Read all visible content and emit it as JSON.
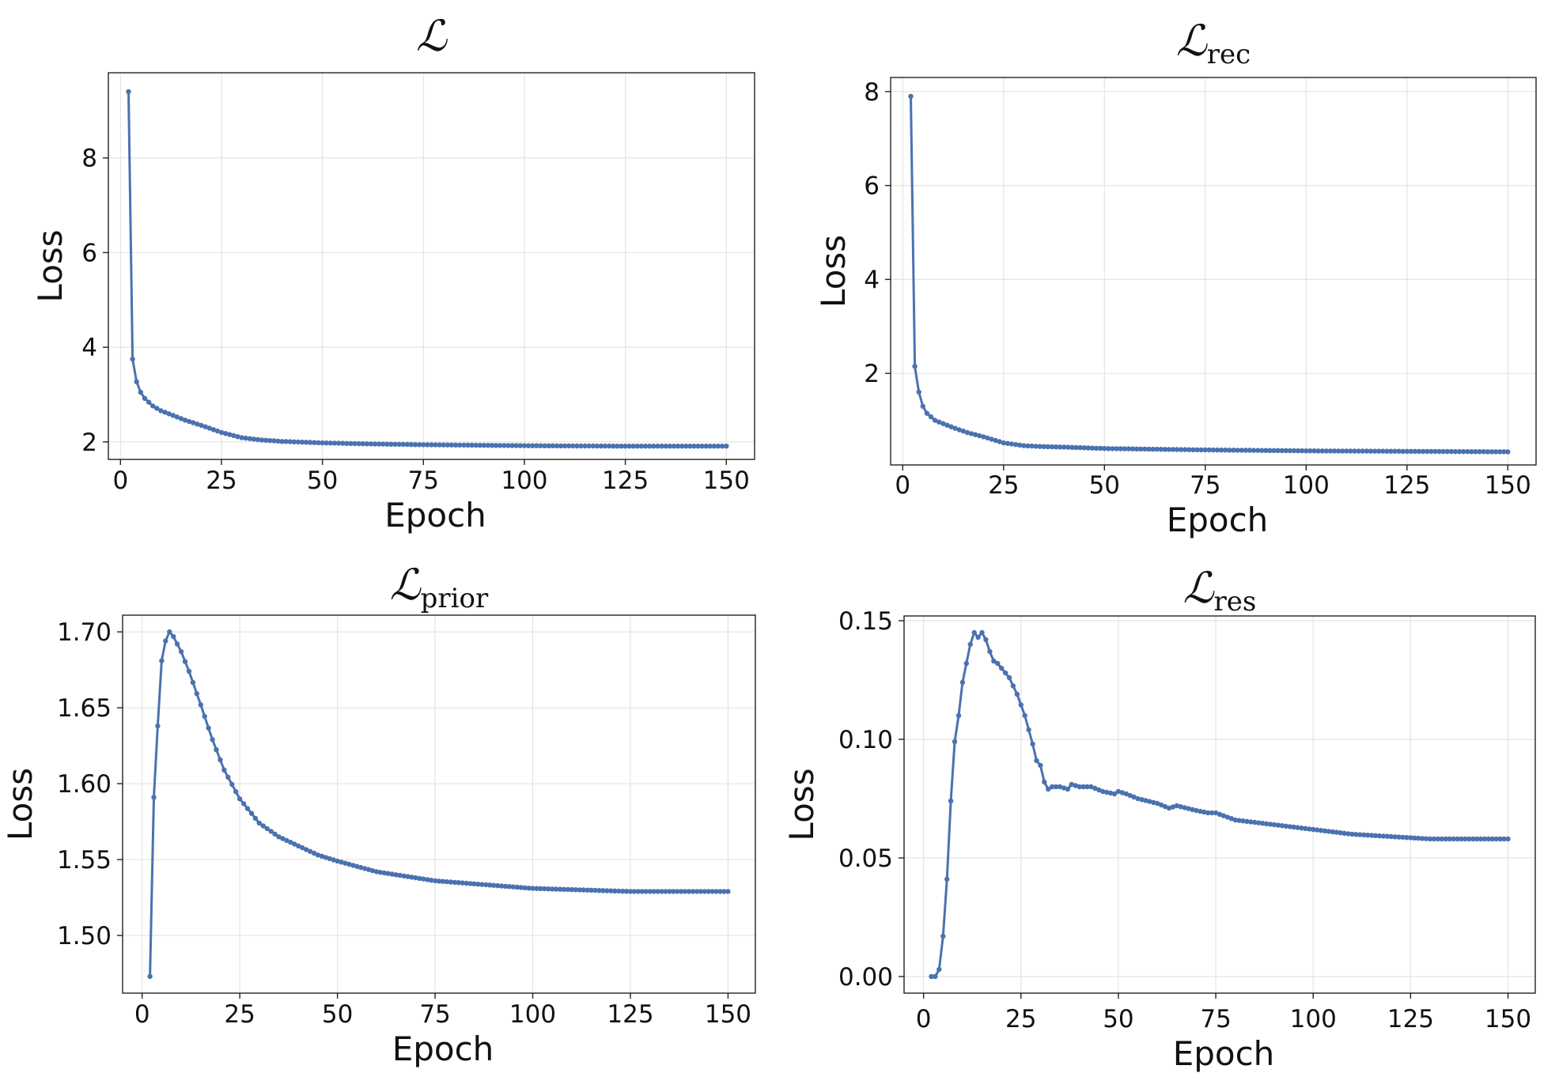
{
  "colors": {
    "series": "#4a72b0",
    "grid": "#e4e4e4"
  },
  "chart_data": [
    {
      "type": "line",
      "title": "ℒ",
      "title_subscript": "",
      "xlabel": "Epoch",
      "ylabel": "Loss",
      "xlim": [
        -3,
        157
      ],
      "ylim": [
        1.63,
        9.8
      ],
      "xticks": [
        0,
        25,
        50,
        75,
        100,
        125,
        150
      ],
      "xtick_labels": [
        "0",
        "25",
        "50",
        "75",
        "100",
        "125",
        "150"
      ],
      "yticks": [
        2,
        4,
        6,
        8
      ],
      "ytick_labels": [
        "2",
        "4",
        "6",
        "8"
      ],
      "grid": true,
      "keypoints_x": [
        2,
        3,
        4,
        5,
        6,
        8,
        10,
        13,
        16,
        20,
        25,
        30,
        35,
        40,
        50,
        60,
        75,
        100,
        125,
        150
      ],
      "keypoints_y": [
        9.4,
        3.75,
        3.27,
        3.05,
        2.92,
        2.76,
        2.66,
        2.56,
        2.46,
        2.35,
        2.2,
        2.09,
        2.04,
        2.01,
        1.98,
        1.96,
        1.94,
        1.92,
        1.91,
        1.91
      ]
    },
    {
      "type": "line",
      "title": "ℒ",
      "title_subscript": "rec",
      "xlabel": "Epoch",
      "ylabel": "Loss",
      "xlim": [
        -3,
        157
      ],
      "ylim": [
        0.05,
        8.3
      ],
      "xticks": [
        0,
        25,
        50,
        75,
        100,
        125,
        150
      ],
      "xtick_labels": [
        "0",
        "25",
        "50",
        "75",
        "100",
        "125",
        "150"
      ],
      "yticks": [
        2,
        4,
        6,
        8
      ],
      "ytick_labels": [
        "2",
        "4",
        "6",
        "8"
      ],
      "grid": true,
      "keypoints_x": [
        2,
        3,
        4,
        5,
        6,
        8,
        10,
        13,
        16,
        20,
        25,
        30,
        35,
        40,
        50,
        75,
        100,
        125,
        150
      ],
      "keypoints_y": [
        7.9,
        2.15,
        1.6,
        1.3,
        1.15,
        1.0,
        0.93,
        0.83,
        0.74,
        0.65,
        0.52,
        0.46,
        0.44,
        0.43,
        0.4,
        0.37,
        0.35,
        0.34,
        0.33
      ]
    },
    {
      "type": "line",
      "title": "ℒ",
      "title_subscript": "prior",
      "xlabel": "Epoch",
      "ylabel": "Loss",
      "xlim": [
        -5,
        157
      ],
      "ylim": [
        1.462,
        1.711
      ],
      "xticks": [
        0,
        25,
        50,
        75,
        100,
        125,
        150
      ],
      "xtick_labels": [
        "0",
        "25",
        "50",
        "75",
        "100",
        "125",
        "150"
      ],
      "yticks": [
        1.5,
        1.55,
        1.6,
        1.65,
        1.7
      ],
      "ytick_labels": [
        "1.50",
        "1.55",
        "1.60",
        "1.65",
        "1.70"
      ],
      "grid": true,
      "keypoints_x": [
        2,
        3,
        4,
        5,
        6,
        7,
        8,
        10,
        12,
        15,
        18,
        21,
        25,
        30,
        35,
        40,
        45,
        50,
        60,
        75,
        100,
        125,
        150
      ],
      "keypoints_y": [
        1.473,
        1.591,
        1.638,
        1.681,
        1.694,
        1.7,
        1.697,
        1.687,
        1.674,
        1.652,
        1.629,
        1.609,
        1.59,
        1.574,
        1.565,
        1.559,
        1.553,
        1.549,
        1.542,
        1.536,
        1.531,
        1.529,
        1.529
      ]
    },
    {
      "type": "line",
      "title": "ℒ",
      "title_subscript": "res",
      "xlabel": "Epoch",
      "ylabel": "Loss",
      "xlim": [
        -5,
        157
      ],
      "ylim": [
        -0.007,
        0.152
      ],
      "xticks": [
        0,
        25,
        50,
        75,
        100,
        125,
        150
      ],
      "xtick_labels": [
        "0",
        "25",
        "50",
        "75",
        "100",
        "125",
        "150"
      ],
      "yticks": [
        0.0,
        0.05,
        0.1,
        0.15
      ],
      "ytick_labels": [
        "0.00",
        "0.05",
        "0.10",
        "0.15"
      ],
      "grid": true,
      "keypoints_x": [
        2,
        3,
        4,
        5,
        6,
        7,
        8,
        9,
        10,
        11,
        12,
        13,
        14,
        15,
        16,
        17,
        18,
        19,
        20,
        22,
        24,
        26,
        28,
        29,
        30,
        31,
        32,
        33,
        35,
        37,
        38,
        40,
        43,
        46,
        49,
        50,
        52,
        55,
        60,
        63,
        65,
        70,
        73,
        75,
        80,
        90,
        100,
        110,
        120,
        130,
        140,
        150
      ],
      "keypoints_y": [
        0.0,
        0.0,
        0.003,
        0.017,
        0.041,
        0.074,
        0.099,
        0.11,
        0.124,
        0.132,
        0.14,
        0.145,
        0.143,
        0.145,
        0.142,
        0.137,
        0.133,
        0.132,
        0.13,
        0.126,
        0.119,
        0.11,
        0.098,
        0.091,
        0.089,
        0.082,
        0.079,
        0.08,
        0.08,
        0.079,
        0.081,
        0.08,
        0.08,
        0.078,
        0.077,
        0.078,
        0.077,
        0.075,
        0.073,
        0.071,
        0.072,
        0.07,
        0.069,
        0.069,
        0.066,
        0.064,
        0.062,
        0.06,
        0.059,
        0.058,
        0.058,
        0.058
      ]
    }
  ]
}
